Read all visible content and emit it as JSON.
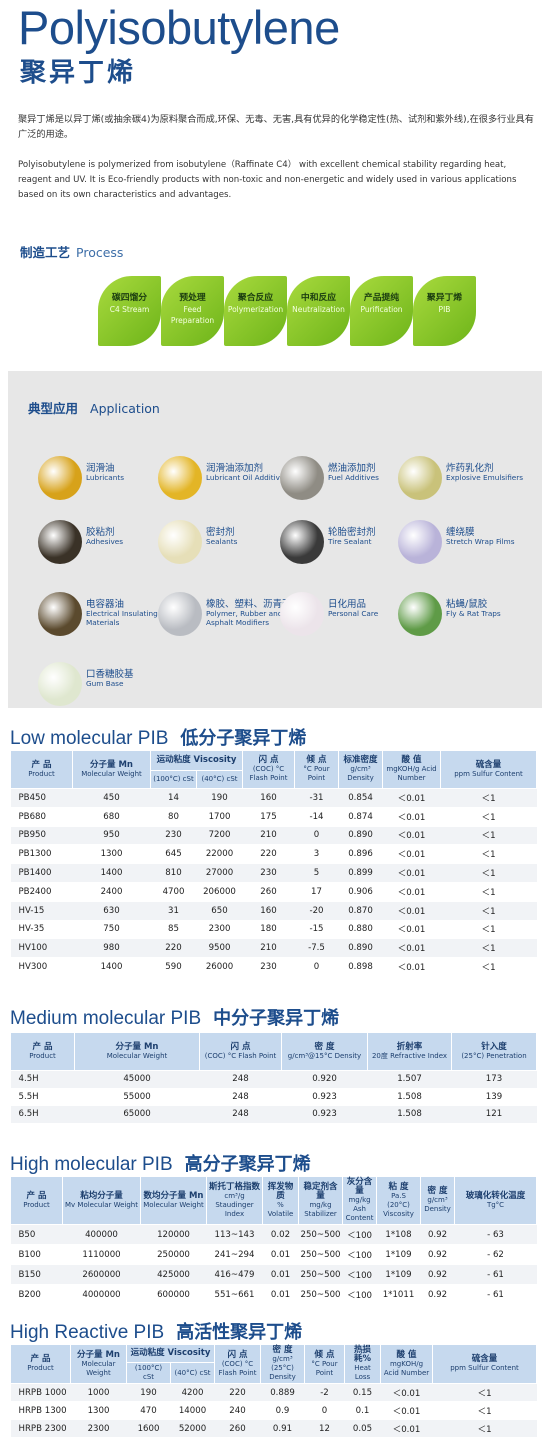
{
  "title_en": "Polyisobutylene",
  "title_zh": "聚异丁烯",
  "intro_zh": "聚异丁烯是以异丁烯(或抽余碳4)为原料聚合而成,环保、无毒、无害,具有优异的化学稳定性(热、试剂和紫外线),在很多行业具有广泛的用途。",
  "intro_en": "Polyisobutylene is polymerized from isobutylene（Raffinate C4） with excellent chemical stability regarding heat, reagent and UV. It is Eco-friendly products with non-toxic and non-energetic and widely used in various applications based on its own characteristics and advantages.",
  "process": {
    "zh": "制造工艺",
    "en": "Process",
    "steps": [
      {
        "zh": "碳四馏分",
        "en": "C4 Stream"
      },
      {
        "zh": "预处理",
        "en": "Feed Preparation"
      },
      {
        "zh": "聚合反应",
        "en": "Polymerization"
      },
      {
        "zh": "中和反应",
        "en": "Neutralization"
      },
      {
        "zh": "产品提纯",
        "en": "Purification"
      },
      {
        "zh": "聚异丁烯",
        "en": "PIB"
      }
    ]
  },
  "application": {
    "zh": "典型应用",
    "en": "Application",
    "items": [
      {
        "zh": "润滑油",
        "en": "Lubricants",
        "icon": "lubricant-icon",
        "color": "#d7a21a"
      },
      {
        "zh": "润滑油添加剂",
        "en": "Lubricant Oil Additives",
        "icon": "oil-additive-icon",
        "color": "#e3b526"
      },
      {
        "zh": "燃油添加剂",
        "en": "Fuel Additives",
        "icon": "fuel-additive-icon",
        "color": "#8f8c84"
      },
      {
        "zh": "炸药乳化剂",
        "en": "Explosive Emulsifiers",
        "icon": "emulsifier-icon",
        "color": "#c9c27a"
      },
      {
        "zh": "胶粘剂",
        "en": "Adhesives",
        "icon": "adhesive-icon",
        "color": "#3a3227"
      },
      {
        "zh": "密封剂",
        "en": "Sealants",
        "icon": "sealant-icon",
        "color": "#e6dfb8"
      },
      {
        "zh": "轮胎密封剂",
        "en": "Tire Sealant",
        "icon": "tire-icon",
        "color": "#3a3a3a"
      },
      {
        "zh": "缠绕膜",
        "en": "Stretch Wrap Films",
        "icon": "wrap-film-icon",
        "color": "#b9b3d9"
      },
      {
        "zh": "电容器油",
        "en": "Electrical Insulating Materials",
        "icon": "capacitor-icon",
        "color": "#5b4a2e"
      },
      {
        "zh": "橡胶、塑料、沥青改性剂",
        "en": "Polymer, Rubber and Asphalt Modifiers",
        "icon": "polymer-icon",
        "color": "#b9bcc2"
      },
      {
        "zh": "日化用品",
        "en": "Personal Care",
        "icon": "personal-care-icon",
        "color": "#ece4ea"
      },
      {
        "zh": "粘蝇/鼠胶",
        "en": "Fly & Rat Traps",
        "icon": "trap-icon",
        "color": "#5f9b47"
      },
      {
        "zh": "口香糖胶基",
        "en": "Gum Base",
        "icon": "gum-icon",
        "color": "#dfe7cf"
      }
    ]
  },
  "low": {
    "title_en": "Low molecular PIB",
    "title_zh": "低分子聚异丁烯",
    "headers": {
      "product_zh": "产 品",
      "product_en": "Product",
      "mn_zh": "分子量 Mn",
      "mn_en": "Molecular Weight",
      "visc_zh": "运动粘度 Viscosity",
      "visc100": "(100°C) cSt",
      "visc40": "(40°C) cSt",
      "flash_zh": "闪 点",
      "flash_en": "(COC) °C Flash Point",
      "pour_zh": "倾 点",
      "pour_en": "°C Pour Point",
      "dens_zh": "标准密度",
      "dens_en": "g/cm³ Density",
      "acid_zh": "酸 值",
      "acid_en": "mgKOH/g Acid Number",
      "sulfur_zh": "硫含量",
      "sulfur_en": "ppm Sulfur Content"
    },
    "rows": [
      [
        "PB450",
        "450",
        "14",
        "190",
        "160",
        "-31",
        "0.854",
        "＜0.01",
        "＜1"
      ],
      [
        "PB680",
        "680",
        "80",
        "1700",
        "175",
        "-14",
        "0.874",
        "＜0.01",
        "＜1"
      ],
      [
        "PB950",
        "950",
        "230",
        "7200",
        "210",
        "0",
        "0.890",
        "＜0.01",
        "＜1"
      ],
      [
        "PB1300",
        "1300",
        "645",
        "22000",
        "220",
        "3",
        "0.896",
        "＜0.01",
        "＜1"
      ],
      [
        "PB1400",
        "1400",
        "810",
        "27000",
        "230",
        "5",
        "0.899",
        "＜0.01",
        "＜1"
      ],
      [
        "PB2400",
        "2400",
        "4700",
        "206000",
        "260",
        "17",
        "0.906",
        "＜0.01",
        "＜1"
      ],
      [
        "HV-15",
        "630",
        "31",
        "650",
        "160",
        "-20",
        "0.870",
        "＜0.01",
        "＜1"
      ],
      [
        "HV-35",
        "750",
        "85",
        "2300",
        "180",
        "-15",
        "0.880",
        "＜0.01",
        "＜1"
      ],
      [
        "HV100",
        "980",
        "220",
        "9500",
        "210",
        "-7.5",
        "0.890",
        "＜0.01",
        "＜1"
      ],
      [
        "HV300",
        "1400",
        "590",
        "26000",
        "230",
        "0",
        "0.898",
        "＜0.01",
        "＜1"
      ]
    ]
  },
  "medium": {
    "title_en": "Medium molecular PIB",
    "title_zh": "中分子聚异丁烯",
    "headers": {
      "product_zh": "产 品",
      "product_en": "Product",
      "mn_zh": "分子量 Mn",
      "mn_en": "Molecular Weight",
      "flash_zh": "闪 点",
      "flash_en": "(COC) °C Flash Point",
      "dens_zh": "密 度",
      "dens_en": "g/cm³@15°C Density",
      "ri_zh": "折射率",
      "ri_en": "20度 Refractive Index",
      "pen_zh": "针入度",
      "pen_en": "(25°C) Penetration"
    },
    "rows": [
      [
        "4.5H",
        "45000",
        "248",
        "0.920",
        "1.507",
        "173"
      ],
      [
        "5.5H",
        "55000",
        "248",
        "0.923",
        "1.508",
        "139"
      ],
      [
        "6.5H",
        "65000",
        "248",
        "0.923",
        "1.508",
        "121"
      ]
    ]
  },
  "high": {
    "title_en": "High molecular PIB",
    "title_zh": "高分子聚异丁烯",
    "headers": {
      "product_zh": "产 品",
      "product_en": "Product",
      "mv_zh": "粘均分子量",
      "mv_en": "Mv Molecular Weight",
      "mn_zh": "数均分子量 Mn",
      "mn_en": "Molecular Weight",
      "stau_zh": "斯托丁格指数",
      "stau_en": "cm³/g Staudinger Index",
      "vol_zh": "挥发物质",
      "vol_en": "% Volatile",
      "stab_zh": "稳定剂含量",
      "stab_en": "mg/kg Stabilizer",
      "ash_zh": "灰分含量",
      "ash_en": "mg/kg Ash Content",
      "visc_zh": "粘 度",
      "visc_en": "Pa.S (20°C) Viscosity",
      "dens_zh": "密 度",
      "dens_en": "g/cm³ Density",
      "tg_zh": "玻璃化转化温度",
      "tg_en": "Tg°C"
    },
    "rows": [
      [
        "B50",
        "400000",
        "120000",
        "113~143",
        "0.02",
        "250~500",
        "＜100",
        "1*108",
        "0.92",
        "- 63"
      ],
      [
        "B100",
        "1110000",
        "250000",
        "241~294",
        "0.01",
        "250~500",
        "＜100",
        "1*109",
        "0.92",
        "- 62"
      ],
      [
        "B150",
        "2600000",
        "425000",
        "416~479",
        "0.01",
        "250~500",
        "＜100",
        "1*109",
        "0.92",
        "- 61"
      ],
      [
        "B200",
        "4000000",
        "600000",
        "551~661",
        "0.01",
        "250~500",
        "＜100",
        "1*1011",
        "0.92",
        "- 61"
      ]
    ]
  },
  "reactive": {
    "title_en": "High Reactive PIB",
    "title_zh": "高活性聚异丁烯",
    "headers": {
      "product_zh": "产 品",
      "product_en": "Product",
      "mn_zh": "分子量 Mn",
      "mn_en": "Molecular Weight",
      "visc_zh": "运动粘度 Viscosity",
      "visc100": "(100°C) cSt",
      "visc40": "(40°C) cSt",
      "flash_zh": "闪 点",
      "flash_en": "(COC) °C Flash Point",
      "dens_zh": "密 度",
      "dens_en": "g/cm³ (25°C) Density",
      "pour_zh": "倾 点",
      "pour_en": "°C Pour Point",
      "heat_zh": "热损耗%",
      "heat_en": "Heat Loss",
      "acid_zh": "酸 值",
      "acid_en": "mgKOH/g Acid Number",
      "sulfur_zh": "硫含量",
      "sulfur_en": "ppm Sulfur Content"
    },
    "rows": [
      [
        "HRPB 1000",
        "1000",
        "190",
        "4200",
        "220",
        "0.889",
        "-2",
        "0.15",
        "＜0.01",
        "＜1"
      ],
      [
        "HRPB 1300",
        "1300",
        "470",
        "14000",
        "240",
        "0.9",
        "0",
        "0.1",
        "＜0.01",
        "＜1"
      ],
      [
        "HRPB 2300",
        "2300",
        "1600",
        "52000",
        "260",
        "0.91",
        "12",
        "0.05",
        "＜0.01",
        "＜1"
      ]
    ]
  }
}
